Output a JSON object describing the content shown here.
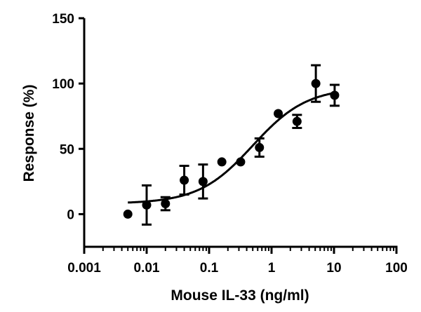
{
  "chart_data": {
    "type": "scatter",
    "xlabel": "Mouse IL-33  (ng/ml)",
    "ylabel": "Response (%)",
    "xscale": "log",
    "xlim": [
      0.001,
      100
    ],
    "ylim": [
      -25,
      150
    ],
    "xticks": [
      "0.001",
      "0.01",
      "0.1",
      "1",
      "10",
      "100"
    ],
    "yticks": [
      "0",
      "50",
      "100",
      "150"
    ],
    "grid": false,
    "points": [
      {
        "x": 0.005,
        "y": 0,
        "err": 0
      },
      {
        "x": 0.01,
        "y": 7,
        "err": 15
      },
      {
        "x": 0.02,
        "y": 8,
        "err": 5
      },
      {
        "x": 0.04,
        "y": 26,
        "err": 11
      },
      {
        "x": 0.08,
        "y": 25,
        "err": 13
      },
      {
        "x": 0.16,
        "y": 40,
        "err": 0
      },
      {
        "x": 0.32,
        "y": 40,
        "err": 0
      },
      {
        "x": 0.64,
        "y": 51,
        "err": 7
      },
      {
        "x": 1.28,
        "y": 77,
        "err": 0
      },
      {
        "x": 2.56,
        "y": 71,
        "err": 5
      },
      {
        "x": 5.12,
        "y": 100,
        "err": 14
      },
      {
        "x": 10.24,
        "y": 91,
        "err": 8
      }
    ],
    "fit": {
      "model": "four-parameter logistic",
      "bottom": 8,
      "top": 97,
      "ec50": 0.5,
      "hill": 1,
      "xrange": [
        0.005,
        10
      ]
    }
  }
}
